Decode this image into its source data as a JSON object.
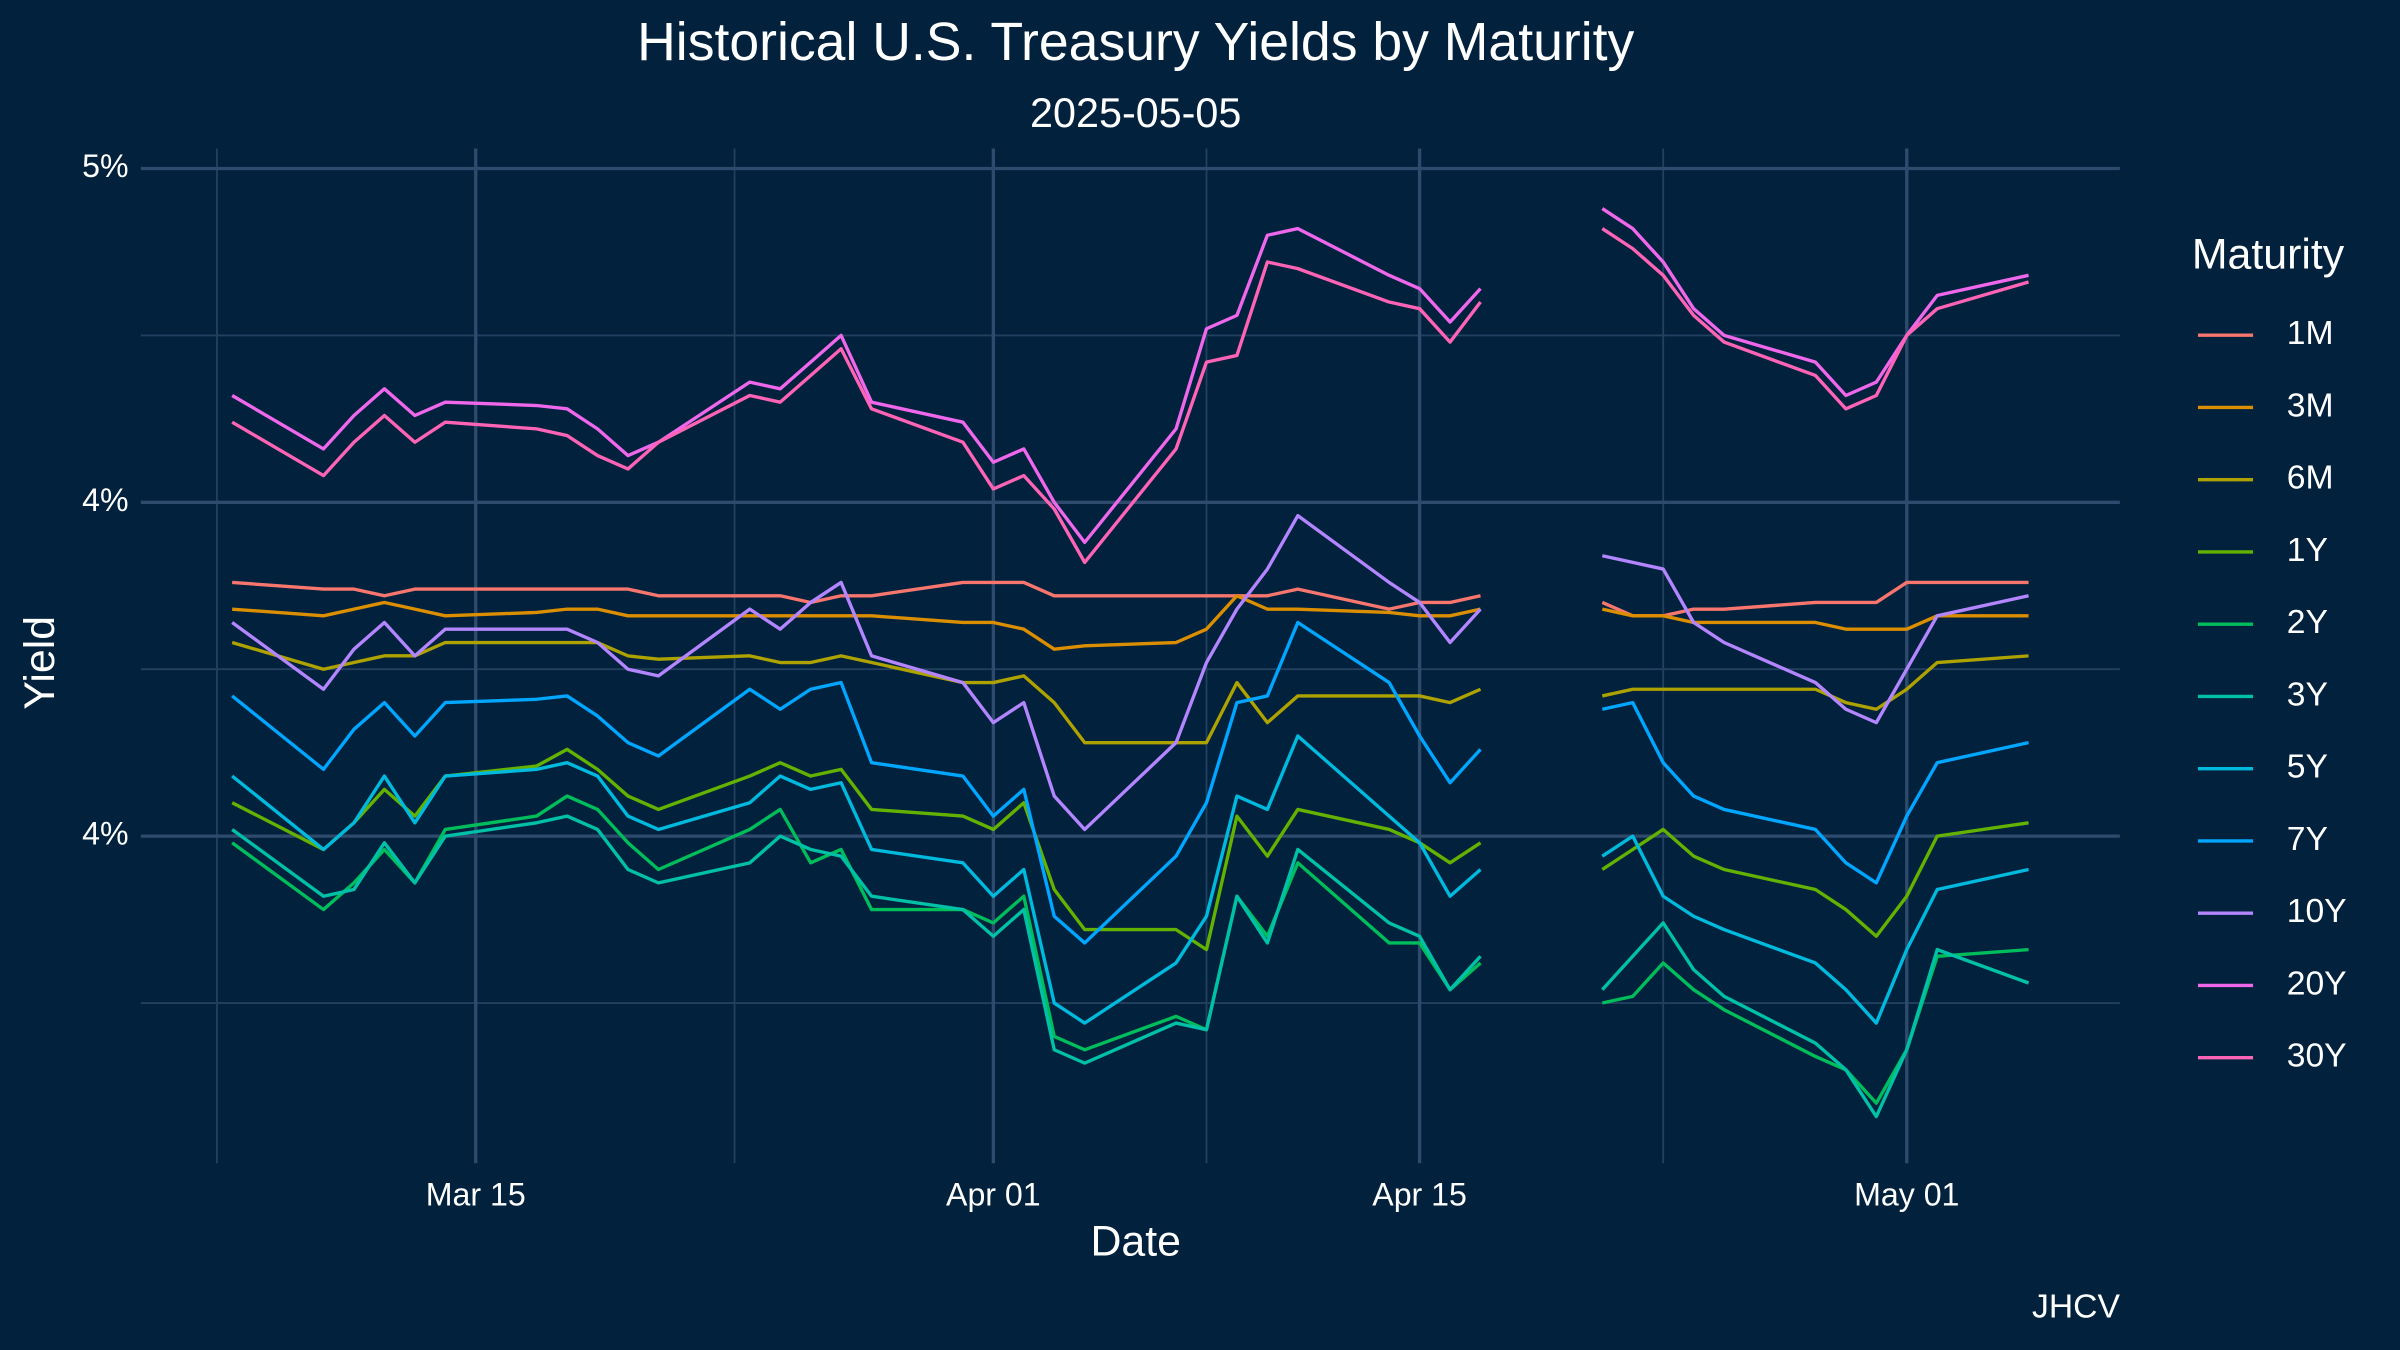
{
  "chart_data": {
    "type": "line",
    "title": "Historical U.S. Treasury Yields by Maturity",
    "subtitle": "2025-05-05",
    "x_label": "Date",
    "y_label": "Yield",
    "caption": "JHCV",
    "legend_title": "Maturity",
    "legend_position": "right",
    "grid": true,
    "x": [
      "Mar 07",
      "Mar 10",
      "Mar 11",
      "Mar 12",
      "Mar 13",
      "Mar 14",
      "Mar 17",
      "Mar 18",
      "Mar 19",
      "Mar 20",
      "Mar 21",
      "Mar 24",
      "Mar 25",
      "Mar 26",
      "Mar 27",
      "Mar 28",
      "Mar 31",
      "Apr 01",
      "Apr 02",
      "Apr 03",
      "Apr 04",
      "Apr 07",
      "Apr 08",
      "Apr 09",
      "Apr 10",
      "Apr 11",
      "Apr 14",
      "Apr 15",
      "Apr 16",
      "Apr 17",
      "Apr 18",
      "Apr 21",
      "Apr 22",
      "Apr 23",
      "Apr 24",
      "Apr 25",
      "Apr 28",
      "Apr 29",
      "Apr 30",
      "May 01",
      "May 02",
      "May 05"
    ],
    "xlim": [
      "Mar 04",
      "May 08"
    ],
    "xticks": [
      "Mar 15",
      "Apr 01",
      "Apr 15",
      "May 01"
    ],
    "ylim": [
      3.51,
      5.03
    ],
    "yticks": [
      {
        "value": 4,
        "label": "4%"
      },
      {
        "value": 4.5,
        "label": "4%"
      },
      {
        "value": 5,
        "label": "5%"
      }
    ],
    "series": [
      {
        "name": "1M",
        "color": "#F8766D",
        "values": [
          4.38,
          4.37,
          4.37,
          4.36,
          4.37,
          4.37,
          4.37,
          4.37,
          4.37,
          4.37,
          4.36,
          4.36,
          4.36,
          4.35,
          4.36,
          4.36,
          4.38,
          4.38,
          4.38,
          4.36,
          4.36,
          4.36,
          4.36,
          4.36,
          4.36,
          4.37,
          4.34,
          4.35,
          4.35,
          4.36,
          null,
          4.35,
          4.33,
          4.33,
          4.34,
          4.34,
          4.35,
          4.35,
          4.35,
          4.38,
          4.38,
          4.38
        ]
      },
      {
        "name": "3M",
        "color": "#DB8E00",
        "values": [
          4.34,
          4.33,
          4.34,
          4.35,
          4.34,
          4.33,
          4.335,
          4.34,
          4.34,
          4.33,
          4.33,
          4.33,
          4.33,
          4.33,
          4.33,
          4.33,
          4.32,
          4.32,
          4.31,
          4.28,
          4.285,
          4.29,
          4.31,
          4.36,
          4.34,
          4.34,
          4.335,
          4.33,
          4.33,
          4.34,
          null,
          4.34,
          4.33,
          4.33,
          4.32,
          4.32,
          4.32,
          4.31,
          4.31,
          4.31,
          4.33,
          4.33
        ]
      },
      {
        "name": "6M",
        "color": "#AEA200",
        "values": [
          4.29,
          4.25,
          4.26,
          4.27,
          4.27,
          4.29,
          4.29,
          4.29,
          4.29,
          4.27,
          4.265,
          4.27,
          4.26,
          4.26,
          4.27,
          4.26,
          4.23,
          4.23,
          4.24,
          4.2,
          4.14,
          4.14,
          4.14,
          4.23,
          4.17,
          4.21,
          4.21,
          4.21,
          4.2,
          4.22,
          null,
          4.21,
          4.22,
          4.22,
          4.22,
          4.22,
          4.22,
          4.2,
          4.19,
          4.22,
          4.26,
          4.27
        ]
      },
      {
        "name": "1Y",
        "color": "#64B200",
        "values": [
          4.05,
          3.98,
          4.02,
          4.07,
          4.03,
          4.09,
          4.105,
          4.13,
          4.1,
          4.06,
          4.04,
          4.09,
          4.11,
          4.09,
          4.1,
          4.04,
          4.03,
          4.01,
          4.05,
          3.92,
          3.86,
          3.86,
          3.83,
          4.03,
          3.97,
          4.04,
          4.01,
          3.99,
          3.96,
          3.99,
          null,
          3.95,
          3.98,
          4.01,
          3.97,
          3.95,
          3.92,
          3.89,
          3.85,
          3.91,
          4.0,
          4.02
        ]
      },
      {
        "name": "2Y",
        "color": "#00BD5C",
        "values": [
          3.99,
          3.89,
          3.93,
          3.98,
          3.93,
          4.01,
          4.03,
          4.06,
          4.04,
          3.99,
          3.95,
          4.01,
          4.04,
          3.96,
          3.98,
          3.89,
          3.89,
          3.87,
          3.91,
          3.7,
          3.68,
          3.73,
          3.71,
          3.91,
          3.85,
          3.96,
          3.84,
          3.84,
          3.77,
          3.81,
          null,
          3.75,
          3.76,
          3.81,
          3.77,
          3.74,
          3.67,
          3.65,
          3.6,
          3.68,
          3.82,
          3.83
        ]
      },
      {
        "name": "3Y",
        "color": "#00C1A7",
        "values": [
          4.01,
          3.91,
          3.92,
          3.99,
          3.93,
          4.0,
          4.02,
          4.03,
          4.01,
          3.95,
          3.93,
          3.96,
          4.0,
          3.98,
          3.97,
          3.91,
          3.89,
          3.85,
          3.89,
          3.68,
          3.66,
          3.72,
          3.71,
          3.91,
          3.84,
          3.98,
          3.87,
          3.85,
          3.77,
          3.82,
          null,
          3.77,
          3.82,
          3.87,
          3.8,
          3.76,
          3.69,
          3.65,
          3.58,
          3.68,
          3.83,
          3.78
        ]
      },
      {
        "name": "5Y",
        "color": "#00BADE",
        "values": [
          4.09,
          3.98,
          4.02,
          4.09,
          4.02,
          4.09,
          4.1,
          4.11,
          4.09,
          4.03,
          4.01,
          4.05,
          4.09,
          4.07,
          4.08,
          3.98,
          3.96,
          3.91,
          3.95,
          3.75,
          3.72,
          3.81,
          3.88,
          4.06,
          4.04,
          4.15,
          4.03,
          3.99,
          3.91,
          3.95,
          null,
          3.97,
          4.0,
          3.91,
          3.88,
          3.86,
          3.81,
          3.77,
          3.72,
          3.83,
          3.92,
          3.95
        ]
      },
      {
        "name": "7Y",
        "color": "#00A6FF",
        "values": [
          4.21,
          4.1,
          4.16,
          4.2,
          4.15,
          4.2,
          4.205,
          4.21,
          4.18,
          4.14,
          4.12,
          4.22,
          4.19,
          4.22,
          4.23,
          4.11,
          4.09,
          4.03,
          4.07,
          3.88,
          3.84,
          3.97,
          4.05,
          4.2,
          4.21,
          4.32,
          4.23,
          4.15,
          4.08,
          4.13,
          null,
          4.19,
          4.2,
          4.11,
          4.06,
          4.04,
          4.01,
          3.96,
          3.93,
          4.03,
          4.11,
          4.14
        ]
      },
      {
        "name": "10Y",
        "color": "#B385FF",
        "values": [
          4.32,
          4.22,
          4.28,
          4.32,
          4.27,
          4.31,
          4.31,
          4.31,
          4.29,
          4.25,
          4.24,
          4.34,
          4.31,
          4.35,
          4.38,
          4.27,
          4.23,
          4.17,
          4.2,
          4.06,
          4.01,
          4.14,
          4.26,
          4.34,
          4.4,
          4.48,
          4.38,
          4.35,
          4.29,
          4.34,
          null,
          4.42,
          4.41,
          4.4,
          4.32,
          4.29,
          4.23,
          4.19,
          4.17,
          4.25,
          4.33,
          4.36
        ]
      },
      {
        "name": "20Y",
        "color": "#EF67EB",
        "values": [
          4.66,
          4.58,
          4.63,
          4.67,
          4.63,
          4.65,
          4.645,
          4.64,
          4.61,
          4.57,
          4.59,
          4.68,
          4.67,
          4.71,
          4.75,
          4.65,
          4.62,
          4.56,
          4.58,
          4.5,
          4.44,
          4.61,
          4.76,
          4.78,
          4.9,
          4.91,
          4.84,
          4.82,
          4.77,
          4.82,
          null,
          4.94,
          4.91,
          4.86,
          4.79,
          4.75,
          4.71,
          4.66,
          4.68,
          4.75,
          4.81,
          4.84
        ]
      },
      {
        "name": "30Y",
        "color": "#FF63B6",
        "values": [
          4.62,
          4.54,
          4.59,
          4.63,
          4.59,
          4.62,
          4.61,
          4.6,
          4.57,
          4.55,
          4.59,
          4.66,
          4.65,
          4.69,
          4.73,
          4.64,
          4.59,
          4.52,
          4.54,
          4.49,
          4.41,
          4.58,
          4.71,
          4.72,
          4.86,
          4.85,
          4.8,
          4.79,
          4.74,
          4.8,
          null,
          4.91,
          4.88,
          4.84,
          4.78,
          4.74,
          4.69,
          4.64,
          4.66,
          4.75,
          4.79,
          4.83
        ]
      }
    ]
  }
}
